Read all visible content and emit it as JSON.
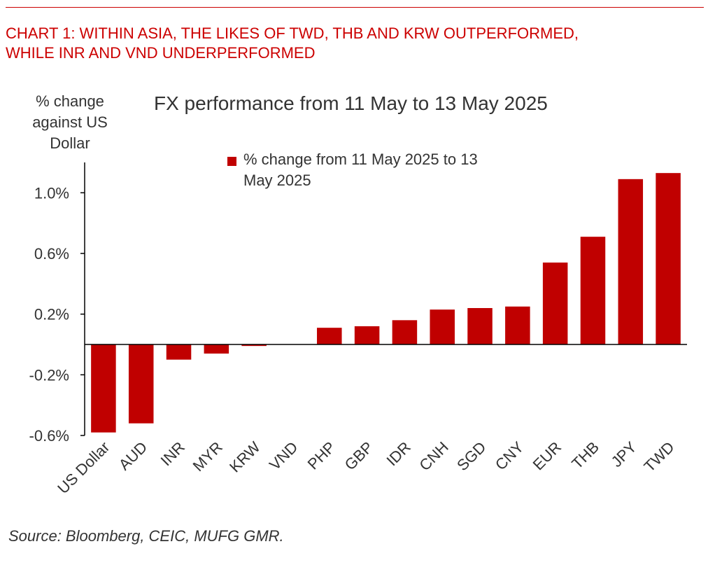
{
  "headline": {
    "line1": "CHART 1: WITHIN ASIA, THE LIKES OF TWD, THB AND KRW OUTPERFORMED,",
    "line2": "WHILE INR AND VND UNDERPERFORMED"
  },
  "source": "Source: Bloomberg, CEIC, MUFG GMR.",
  "colors": {
    "accent": "#cc0000",
    "bar": "#c00000",
    "text": "#333333"
  },
  "chart_data": {
    "type": "bar",
    "title": "FX performance from 11 May to  13 May 2025",
    "ylabel_lines": [
      "% change",
      "against US",
      "Dollar"
    ],
    "xlabel": "",
    "categories": [
      "US Dollar",
      "AUD",
      "INR",
      "MYR",
      "KRW",
      "VND",
      "PHP",
      "GBP",
      "IDR",
      "CNH",
      "SGD",
      "CNY",
      "EUR",
      "THB",
      "JPY",
      "TWD"
    ],
    "series": [
      {
        "name": "% change from 11 May 2025 to 13 May 2025",
        "legend_lines": [
          "% change from 11 May 2025 to 13",
          "May 2025"
        ],
        "values": [
          -0.58,
          -0.52,
          -0.1,
          -0.06,
          -0.01,
          0.0,
          0.11,
          0.12,
          0.16,
          0.23,
          0.24,
          0.25,
          0.54,
          0.71,
          1.09,
          1.13
        ]
      }
    ],
    "yticks": [
      -0.6,
      -0.2,
      0.2,
      0.6,
      1.0
    ],
    "ytick_labels": [
      "-0.6%",
      "-0.2%",
      "0.2%",
      "0.6%",
      "1.0%"
    ],
    "ylim": [
      -0.6,
      1.2
    ],
    "grid": false,
    "legend_position": "top-center"
  }
}
